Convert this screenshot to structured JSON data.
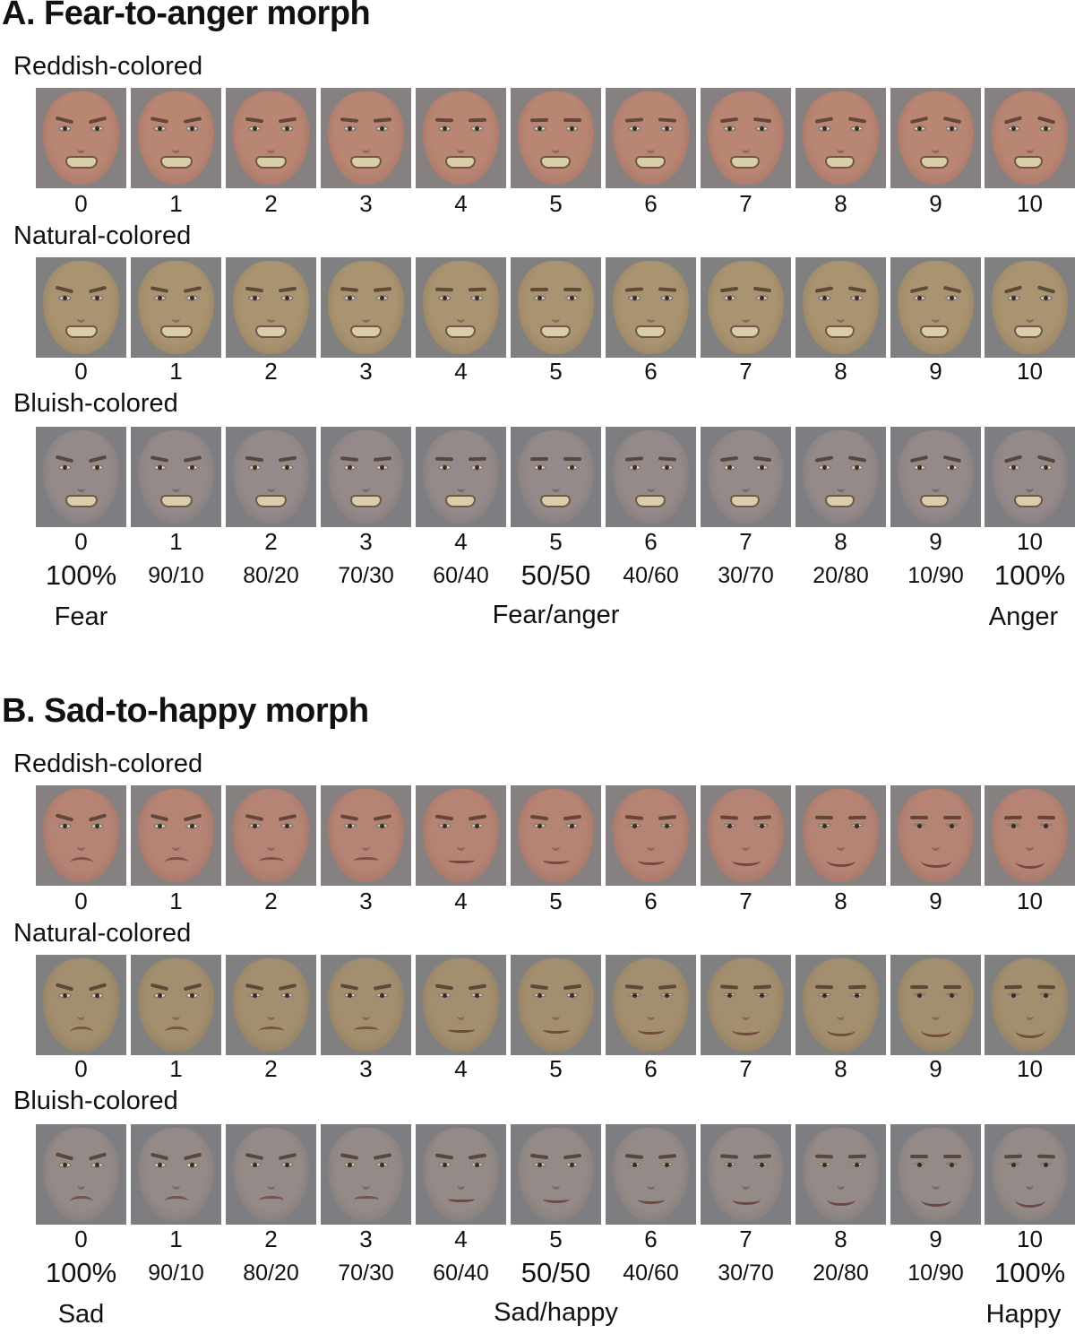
{
  "panels": [
    {
      "id": "A",
      "title": "A. Fear-to-anger morph",
      "expression": "fear-anger",
      "rows": [
        {
          "label": "Reddish-colored",
          "skin": "#b98674",
          "shade": "#9e6a5c",
          "bg": "#868080"
        },
        {
          "label": "Natural-colored",
          "skin": "#a99370",
          "shade": "#8c7757",
          "bg": "#808080"
        },
        {
          "label": "Bluish-colored",
          "skin": "#948a8a",
          "shade": "#7a706f",
          "bg": "#7e7e82"
        }
      ],
      "steps": [
        "0",
        "1",
        "2",
        "3",
        "4",
        "5",
        "6",
        "7",
        "8",
        "9",
        "10"
      ],
      "ratios": [
        "100%",
        "90/10",
        "80/20",
        "70/30",
        "60/40",
        "50/50",
        "40/60",
        "30/70",
        "20/80",
        "10/90",
        "100%"
      ],
      "left_label": "Fear",
      "middle_label": "Fear/anger",
      "right_label": "Anger"
    },
    {
      "id": "B",
      "title": "B. Sad-to-happy morph",
      "expression": "sad-happy",
      "rows": [
        {
          "label": "Reddish-colored",
          "skin": "#b58475",
          "shade": "#98685b",
          "bg": "#868080"
        },
        {
          "label": "Natural-colored",
          "skin": "#a38f6f",
          "shade": "#867356",
          "bg": "#808080"
        },
        {
          "label": "Bluish-colored",
          "skin": "#948a88",
          "shade": "#7a706e",
          "bg": "#7e7e82"
        }
      ],
      "steps": [
        "0",
        "1",
        "2",
        "3",
        "4",
        "5",
        "6",
        "7",
        "8",
        "9",
        "10"
      ],
      "ratios": [
        "100%",
        "90/10",
        "80/20",
        "70/30",
        "60/40",
        "50/50",
        "40/60",
        "30/70",
        "20/80",
        "10/90",
        "100%"
      ],
      "left_label": "Sad",
      "middle_label": "Sad/happy",
      "right_label": "Happy"
    }
  ]
}
